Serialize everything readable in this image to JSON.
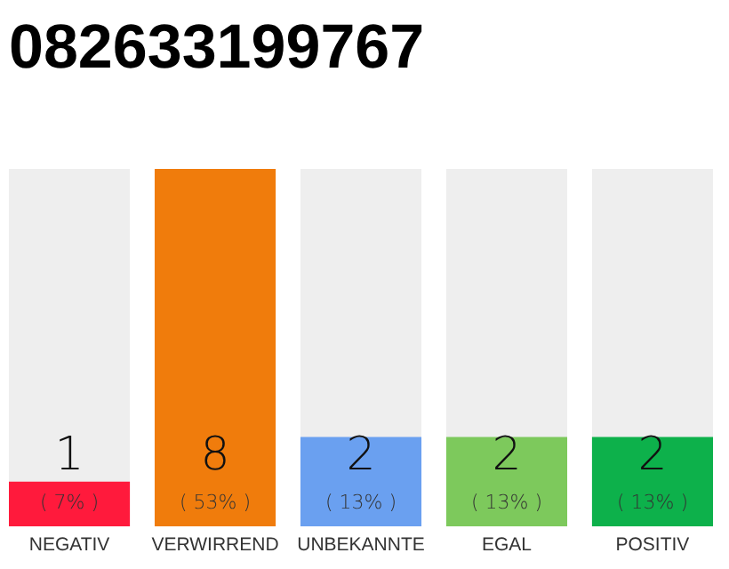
{
  "chart_data": {
    "type": "bar",
    "title": "082633199767",
    "categories": [
      "NEGATIV",
      "VERWIRREND",
      "UNBEKANNTE",
      "EGAL",
      "POSITIV"
    ],
    "values": [
      1,
      8,
      2,
      2,
      2
    ],
    "colors": [
      "#ff1a3c",
      "#f07c0c",
      "#6aa0f0",
      "#7dc95c",
      "#0db14b"
    ],
    "ylim": [
      0,
      8
    ],
    "tick_labels": "x",
    "data_labels": true,
    "annotations": [
      "( 7% )",
      "( 53% )",
      "( 13% )",
      "( 13% )",
      "( 13% )"
    ]
  }
}
